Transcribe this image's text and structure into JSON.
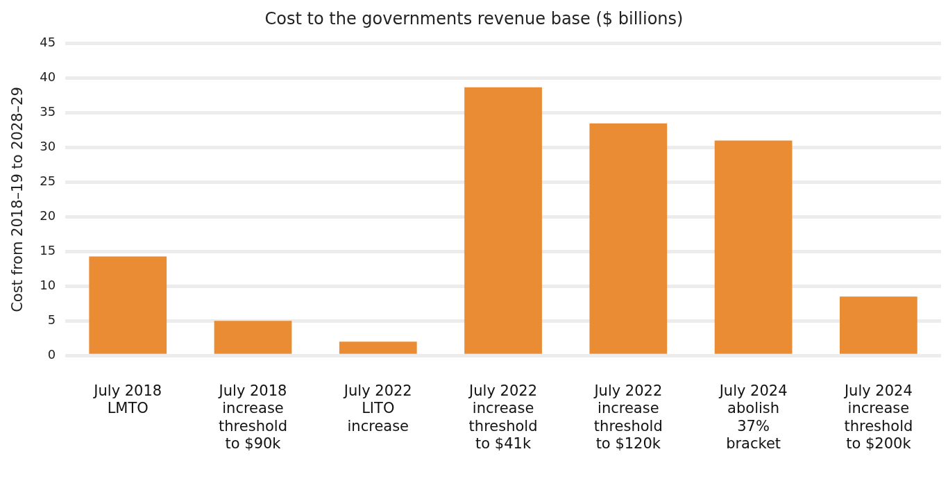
{
  "chart_data": {
    "type": "bar",
    "title": "Cost to the governments revenue base ($ billions)",
    "ylabel": "Cost from 2018–19 to 2028–29",
    "categories": [
      "July 2018\nLMTO",
      "July 2018\nincrease\nthreshold\nto $90k",
      "July 2022\nLITO\nincrease",
      "July 2022\nincrease\nthreshold\nto $41k",
      "July 2022\nincrease\nthreshold\nto $120k",
      "July 2024\nabolish\n37%\nbracket",
      "July 2024\nincrease\nthreshold\nto $200k"
    ],
    "values": [
      14.3,
      5.0,
      2.0,
      38.7,
      33.5,
      31.0,
      8.5
    ],
    "color": "#e98c33",
    "ylim": [
      0,
      45
    ],
    "yticks": [
      0,
      5,
      10,
      15,
      20,
      25,
      30,
      35,
      40,
      45
    ],
    "grid": "y"
  }
}
